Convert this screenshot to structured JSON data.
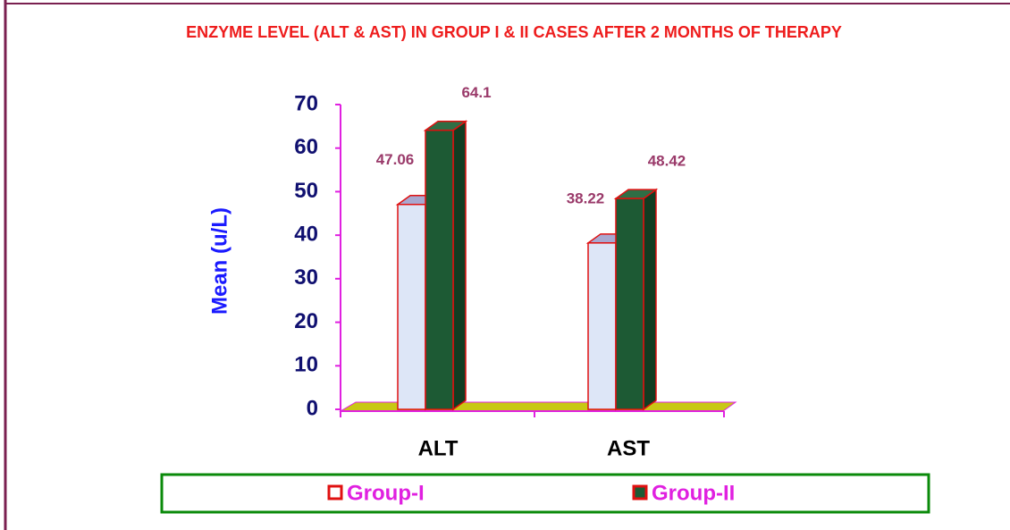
{
  "chart_data": {
    "type": "bar3d",
    "title": "ENZYME LEVEL (ALT & AST) IN GROUP I & II CASES AFTER 2 MONTHS OF THERAPY",
    "y_label": "Mean (u/L)",
    "categories": [
      "ALT",
      "AST"
    ],
    "series": [
      {
        "name": "Group-I",
        "color": "#dde6f7",
        "values": [
          47.06,
          38.22
        ]
      },
      {
        "name": "Group-II",
        "color": "#1d5a34",
        "values": [
          64.1,
          48.42
        ]
      }
    ],
    "ylim": [
      0,
      70
    ],
    "yticks": [
      0,
      10,
      20,
      30,
      40,
      50,
      60,
      70
    ],
    "legend": "bottom"
  }
}
